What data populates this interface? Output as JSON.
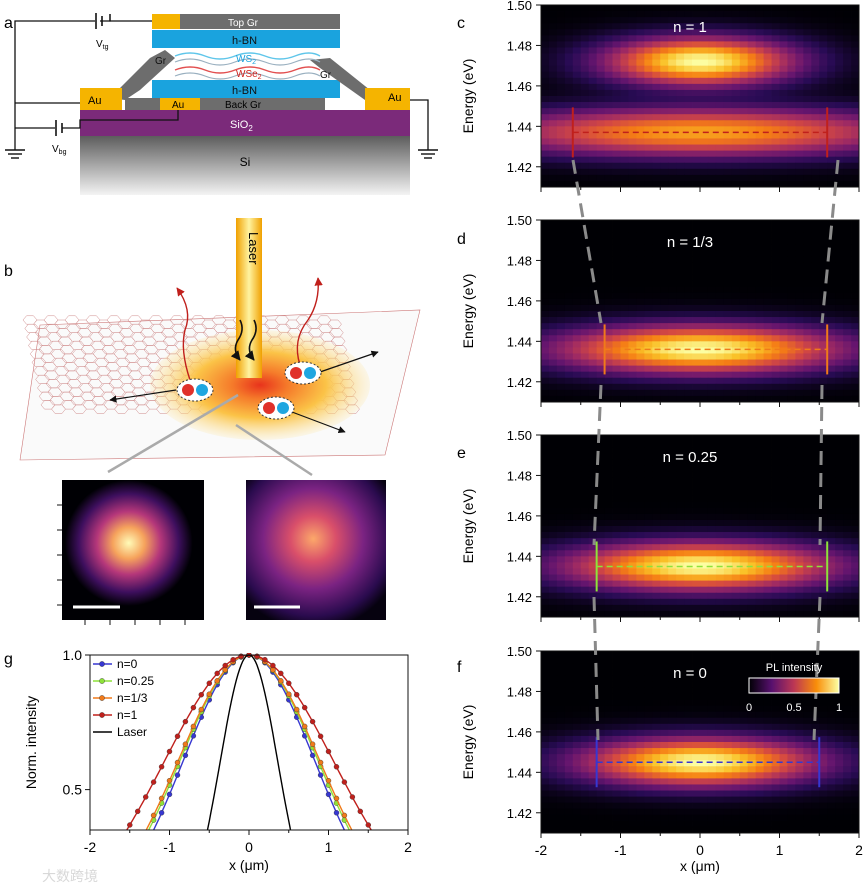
{
  "panel_labels": {
    "a": "a",
    "b": "b",
    "c": "c",
    "d": "d",
    "e": "e",
    "f": "f",
    "g": "g"
  },
  "device": {
    "top_gr": "Top Gr",
    "hbn_top": "h-BN",
    "ws2": "WS",
    "ws2_sub": "2",
    "wse2": "WSe",
    "wse2_sub": "2",
    "gr_left": "Gr",
    "gr_right": "Gr",
    "hbn_bottom": "h-BN",
    "back_gr": "Back Gr",
    "au_left": "Au",
    "au_center": "Au",
    "au_right": "Au",
    "sio2": "SiO",
    "sio2_sub": "2",
    "si": "Si",
    "vtg": "V",
    "vtg_sub": "tg",
    "vbg": "V",
    "vbg_sub": "bg"
  },
  "schematic": {
    "laser": "Laser"
  },
  "colors": {
    "gold": "#f5b400",
    "gray": "#6d6d6d",
    "hbn": "#1aa3de",
    "purple": "#7b2a7a",
    "n1": "#c0201c",
    "n033": "#f07a1a",
    "n025": "#8ee23a",
    "n0": "#3737d1",
    "laser": "#000000"
  },
  "colorbar": {
    "title": "PL intensity",
    "ticks": [
      "0",
      "0.5",
      "1"
    ]
  },
  "chart_data": [
    {
      "panel": "c",
      "type": "heatmap",
      "title": "n = 1",
      "ylabel": "Energy (eV)",
      "ylim": [
        1.41,
        1.5
      ],
      "xlim": [
        -2,
        2
      ],
      "yticks": [
        "1.42",
        "1.44",
        "1.46",
        "1.48",
        "1.50"
      ],
      "peaks": [
        {
          "energy": 1.437,
          "width_um": 2.7,
          "intensity": 0.75
        },
        {
          "energy": 1.472,
          "width_um": 1.2,
          "intensity": 1.0
        }
      ],
      "marker_energy": 1.437,
      "marker_x": [
        -1.6,
        1.6
      ]
    },
    {
      "panel": "d",
      "type": "heatmap",
      "title": "n = 1/3",
      "ylabel": "Energy (eV)",
      "ylim": [
        1.41,
        1.5
      ],
      "xlim": [
        -2,
        2
      ],
      "yticks": [
        "1.42",
        "1.44",
        "1.46",
        "1.48",
        "1.50"
      ],
      "peaks": [
        {
          "energy": 1.436,
          "width_um": 1.8,
          "intensity": 1.0
        }
      ],
      "marker_energy": 1.436,
      "marker_x": [
        -1.2,
        1.6
      ]
    },
    {
      "panel": "e",
      "type": "heatmap",
      "title": "n = 0.25",
      "ylabel": "Energy (eV)",
      "ylim": [
        1.41,
        1.5
      ],
      "xlim": [
        -2,
        2
      ],
      "yticks": [
        "1.42",
        "1.44",
        "1.46",
        "1.48",
        "1.50"
      ],
      "peaks": [
        {
          "energy": 1.435,
          "width_um": 1.7,
          "intensity": 1.0
        }
      ],
      "marker_energy": 1.435,
      "marker_x": [
        -1.3,
        1.6
      ]
    },
    {
      "panel": "f",
      "type": "heatmap",
      "title": "n = 0",
      "ylabel": "Energy (eV)",
      "ylim": [
        1.41,
        1.5
      ],
      "xlim": [
        -2,
        2
      ],
      "yticks": [
        "1.42",
        "1.44",
        "1.46",
        "1.48",
        "1.50"
      ],
      "xticks": [
        "-2",
        "-1",
        "0",
        "1",
        "2"
      ],
      "xlabel": "x (μm)",
      "peaks": [
        {
          "energy": 1.445,
          "width_um": 1.5,
          "intensity": 1.0
        }
      ],
      "marker_energy": 1.445,
      "marker_x": [
        -1.3,
        1.5
      ]
    },
    {
      "panel": "g",
      "type": "line",
      "xlabel": "x (μm)",
      "ylabel": "Norm. intensity",
      "xlim": [
        -2,
        2
      ],
      "ylim": [
        0.35,
        1.0
      ],
      "xticks": [
        "-2",
        "-1",
        "0",
        "1",
        "2"
      ],
      "yticks": [
        "0.5",
        "1.0"
      ],
      "series": [
        {
          "name": "n=0",
          "fwhm": 1.95
        },
        {
          "name": "n=0.25",
          "fwhm": 2.05
        },
        {
          "name": "n=1/3",
          "fwhm": 2.1
        },
        {
          "name": "n=1",
          "fwhm": 2.5
        },
        {
          "name": "Laser",
          "fwhm": 0.85
        }
      ]
    }
  ],
  "watermark": "大数跨境"
}
